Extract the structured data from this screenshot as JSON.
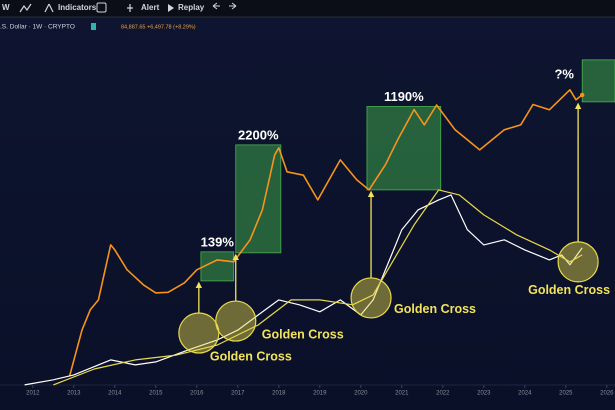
{
  "toolbar": {
    "interval": "W",
    "items": [
      "Indicators",
      "Alert",
      "Replay"
    ]
  },
  "symbol": {
    "name": ".S. Dollar · 1W · CRYPTO",
    "quote": "84,887.65 +6,497.78 (+8.29%)"
  },
  "chart_data": {
    "type": "line",
    "log_scale": true,
    "xlim": [
      2011.2,
      2026.2
    ],
    "ylim": [
      9.4,
      690000
    ],
    "xticks": [
      2012,
      2013,
      2014,
      2015,
      2016,
      2017,
      2018,
      2019,
      2020,
      2021,
      2022,
      2023,
      2024,
      2025,
      2026
    ],
    "series": [
      {
        "color": "#f7931a",
        "x": [
          2012.9,
          2013.2,
          2013.4,
          2013.6,
          2013.9,
          2014.0,
          2014.3,
          2014.7,
          2015.0,
          2015.3,
          2015.7,
          2016.0,
          2016.5,
          2016.9,
          2017.3,
          2017.6,
          2017.9,
          2018.0,
          2018.2,
          2018.6,
          2018.95,
          2019.5,
          2019.9,
          2020.2,
          2020.6,
          2020.9,
          2021.3,
          2021.55,
          2021.85,
          2022.3,
          2022.9,
          2023.5,
          2023.9,
          2024.2,
          2024.6,
          2024.9,
          2025.1,
          2025.25,
          2025.4
        ],
        "values": [
          17,
          69,
          128,
          174,
          943,
          809,
          438,
          276,
          216,
          220,
          294,
          438,
          595,
          561,
          1100,
          2763,
          14950,
          18550,
          8870,
          8000,
          3750,
          12800,
          6940,
          5100,
          11000,
          23700,
          60000,
          37500,
          69000,
          32200,
          17400,
          32200,
          37500,
          70000,
          59500,
          86000,
          110000,
          81000,
          94000
        ]
      },
      {
        "color": "#ffffff",
        "x": [
          2011.8,
          2012.5,
          2013.0,
          2013.9,
          2014.5,
          2015.0,
          2015.8,
          2016.5,
          2017.0,
          2017.5,
          2018.0,
          2018.5,
          2019.0,
          2019.5,
          2020.0,
          2020.3,
          2020.7,
          2021.0,
          2021.4,
          2021.9,
          2022.2,
          2022.6,
          2023.0,
          2023.5,
          2024.0,
          2024.6,
          2024.9,
          2025.1,
          2025.4
        ],
        "values": [
          12.8,
          15,
          17.4,
          27.6,
          23.7,
          26,
          37.6,
          51,
          69,
          110,
          174,
          150,
          121,
          174,
          110,
          174,
          595,
          1500,
          2763,
          3750,
          4371,
          1500,
          943,
          1100,
          809,
          595,
          694,
          511,
          862
        ]
      },
      {
        "color": "#e8d94a",
        "x": [
          2012.5,
          2013.5,
          2014.5,
          2015.5,
          2016.5,
          2017.5,
          2018.3,
          2019.0,
          2019.8,
          2020.3,
          2020.8,
          2021.3,
          2021.9,
          2022.4,
          2023.0,
          2023.8,
          2024.6,
          2025.1,
          2025.4
        ],
        "values": [
          12.8,
          20.9,
          27.6,
          32,
          43.6,
          80.8,
          174,
          174,
          150,
          203,
          595,
          1740,
          5100,
          4371,
          2365,
          1285,
          809,
          559,
          694
        ]
      }
    ],
    "boxes": [
      {
        "label": "139%",
        "x": [
          2016.1,
          2016.9
        ],
        "y": [
          312,
          761
        ]
      },
      {
        "label": "2200%",
        "x": [
          2016.95,
          2018.05
        ],
        "y": [
          738,
          20300
        ]
      },
      {
        "label": "1190%",
        "x": [
          2020.15,
          2021.95
        ],
        "y": [
          5100,
          66000
        ]
      },
      {
        "label": "?%",
        "x": [
          2025.4,
          2026.2
        ],
        "y": [
          76000,
          276000
        ]
      }
    ],
    "golden_crosses": [
      {
        "label": "Golden Cross",
        "x": 2016.05,
        "y": 63
      },
      {
        "label": "Golden Cross",
        "x": 2016.95,
        "y": 91
      },
      {
        "label": "Golden Cross",
        "x": 2020.25,
        "y": 185
      },
      {
        "label": "Golden Cross",
        "x": 2025.3,
        "y": 560
      }
    ]
  }
}
